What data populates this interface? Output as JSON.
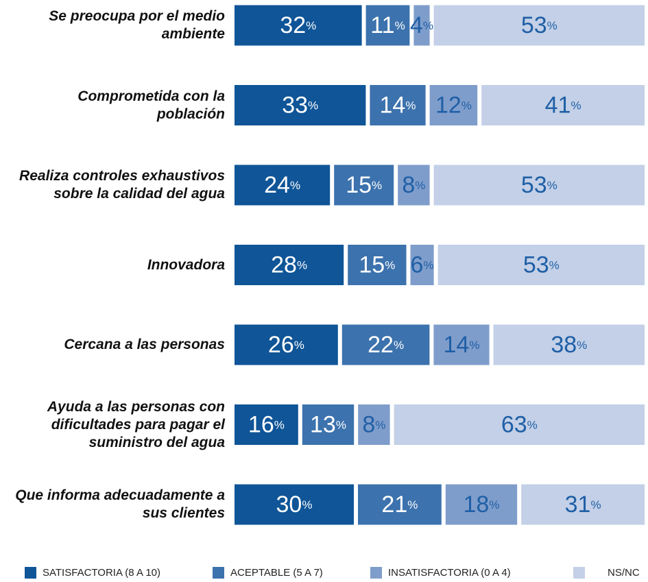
{
  "chart_data": {
    "type": "stacked_bar_horizontal",
    "categories": [
      "Se preocupa por el medio ambiente",
      "Comprometida con la población",
      "Realiza controles exhaustivos sobre la calidad del agua",
      "Innovadora",
      "Cercana a las personas",
      "Ayuda a las personas con dificultades para pagar el suministro del agua",
      "Que informa adecuadamente a sus clientes"
    ],
    "series": [
      {
        "name": "SATISFACTORIA (8 A 10)",
        "color": "#0f5597",
        "label_color": "#ffffff",
        "values": [
          32,
          33,
          24,
          28,
          26,
          16,
          30
        ],
        "value_labels": [
          "32%",
          "33%",
          "24%",
          "28%",
          "26%",
          "16%",
          "30%"
        ]
      },
      {
        "name": "ACEPTABLE (5 A 7)",
        "color": "#3c72ad",
        "label_color": "#ffffff",
        "values": [
          11,
          14,
          15,
          15,
          22,
          13,
          21
        ],
        "value_labels": [
          "11%",
          "14%",
          "15%",
          "15%",
          "22%",
          "13%",
          "21%"
        ]
      },
      {
        "name": "INSATISFACTORIA (0 A 4)",
        "color": "#7f9dcb",
        "label_color": "#1f5fa6",
        "values": [
          4,
          12,
          8,
          6,
          14,
          8,
          18
        ],
        "value_labels": [
          "4%",
          "12%",
          "8%",
          "6%",
          "14%",
          "8%",
          "18%"
        ]
      },
      {
        "name": "NS/NC",
        "color": "#c3d0e7",
        "label_color": "#1f5fa6",
        "values": [
          53,
          41,
          53,
          53,
          38,
          63,
          31
        ],
        "value_labels": [
          "53%",
          "41%",
          "53%",
          "53%",
          "38%",
          "63%",
          "31%"
        ]
      }
    ]
  }
}
